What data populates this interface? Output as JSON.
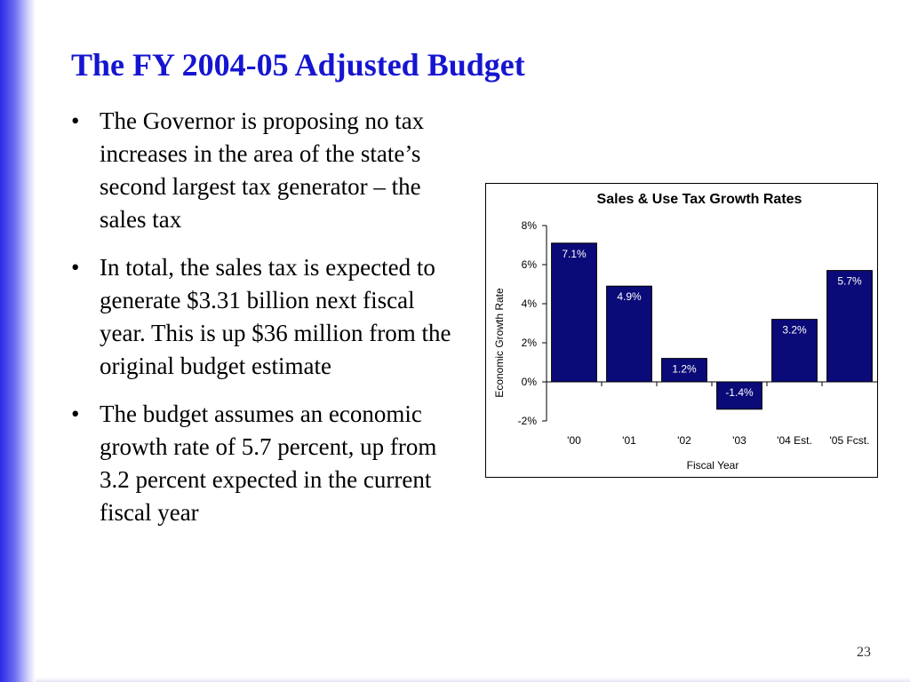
{
  "slide": {
    "title": "The FY 2004-05 Adjusted Budget",
    "page_number": "23",
    "bullets": [
      {
        "marker": "•",
        "text": "The Governor is proposing no tax increases in the area of the state’s second largest tax generator – the sales tax"
      },
      {
        "marker": "•",
        "text": "In total, the sales tax is expected to generate $3.31 billion next fiscal year. This is up $36 million from the original budget estimate"
      },
      {
        "marker": "•",
        "text": "The budget assumes an economic growth rate of 5.7 percent, up from 3.2 percent expected in the current fiscal year"
      }
    ],
    "colors": {
      "title": "#1515d1",
      "accent_bar": "#2a2ae6"
    }
  },
  "chart_data": {
    "type": "bar",
    "title": "Sales & Use Tax Growth Rates",
    "xlabel": "Fiscal Year",
    "ylabel": "Economic Growth Rate",
    "categories": [
      "'00",
      "'01",
      "'02",
      "'03",
      "'04 Est.",
      "'05 Fcst."
    ],
    "values": [
      7.1,
      4.9,
      1.2,
      -1.4,
      3.2,
      5.7
    ],
    "data_labels": [
      "7.1%",
      "4.9%",
      "1.2%",
      "-1.4%",
      "3.2%",
      "5.7%"
    ],
    "ylim": [
      -2,
      8
    ],
    "yticks": [
      -2,
      0,
      2,
      4,
      6,
      8
    ],
    "ytick_labels": [
      "-2%",
      "0%",
      "2%",
      "4%",
      "6%",
      "8%"
    ],
    "bar_color": "#0a0a78",
    "label_color": "#ffffff",
    "grid": false,
    "legend": "none"
  }
}
